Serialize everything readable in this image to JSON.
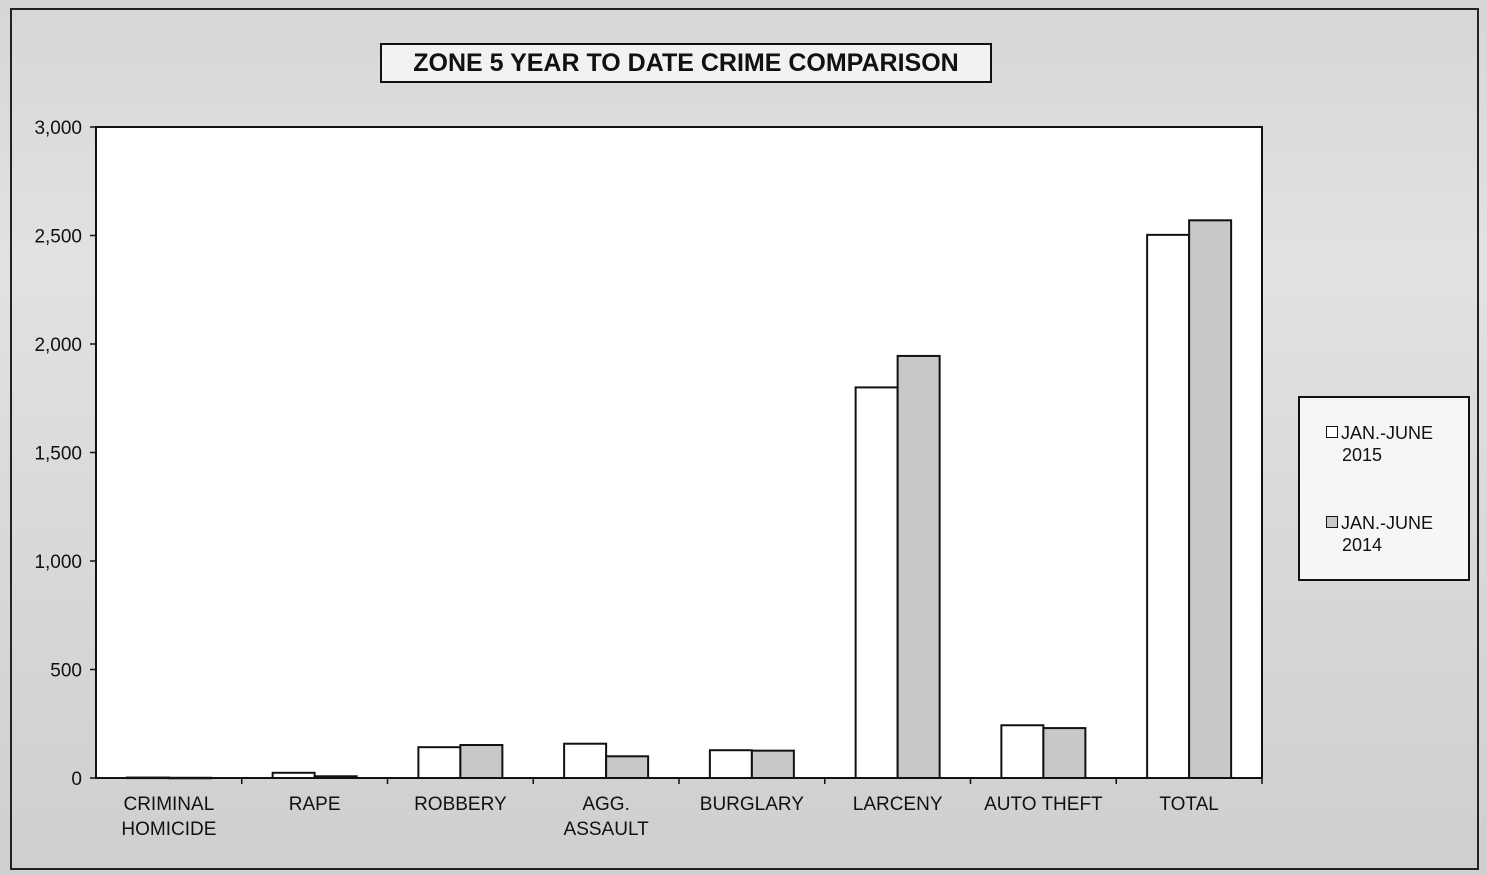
{
  "colors": {
    "series_2015": "#ffffff",
    "series_2014": "#c8c8c8",
    "stroke": "#111111"
  },
  "chart_data": {
    "type": "bar",
    "title": "ZONE 5  YEAR TO DATE CRIME COMPARISON",
    "categories": [
      [
        "CRIMINAL",
        "HOMICIDE"
      ],
      [
        "RAPE"
      ],
      [
        "ROBBERY"
      ],
      [
        "AGG.",
        "ASSAULT"
      ],
      [
        "BURGLARY"
      ],
      [
        "LARCENY"
      ],
      [
        "AUTO THEFT"
      ],
      [
        "TOTAL"
      ]
    ],
    "series": [
      {
        "name": "JAN.-JUNE 2015",
        "legend_lines": [
          "JAN.-JUNE",
          "2015"
        ],
        "values": [
          2,
          24,
          142,
          158,
          128,
          1800,
          243,
          2503
        ]
      },
      {
        "name": "JAN.-JUNE 2014",
        "legend_lines": [
          "JAN.-JUNE",
          "2014"
        ],
        "values": [
          1,
          8,
          152,
          100,
          126,
          1945,
          230,
          2570
        ]
      }
    ],
    "xlabel": "",
    "ylabel": "",
    "ylim": [
      0,
      3000
    ],
    "yticks": [
      0,
      500,
      1000,
      1500,
      2000,
      2500,
      3000
    ],
    "ytick_labels": [
      "0",
      "500",
      "1,000",
      "1,500",
      "2,000",
      "2,500",
      "3,000"
    ],
    "grid": false,
    "legend_position": "right"
  }
}
